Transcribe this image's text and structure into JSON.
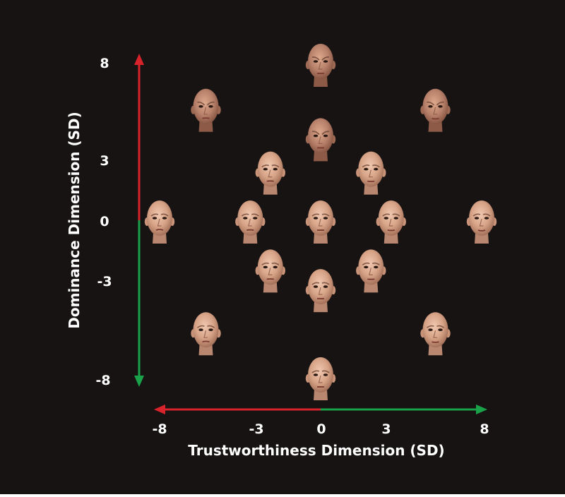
{
  "colors": {
    "background": "#171313",
    "negative_arrow": "#d9232c",
    "positive_arrow": "#1aa24a",
    "text": "#ffffff",
    "skin_light": "#e2b49a",
    "skin_dark": "#a8725a"
  },
  "axes": {
    "x": {
      "label": "Trustworthiness Dimension (SD)",
      "ticks": [
        {
          "value": -8,
          "label": "-8"
        },
        {
          "value": -3,
          "label": "-3"
        },
        {
          "value": 0,
          "label": "0"
        },
        {
          "value": 3,
          "label": "3"
        },
        {
          "value": 8,
          "label": "8"
        }
      ],
      "range": [
        -8,
        8
      ]
    },
    "y": {
      "label": "Dominance Dimension (SD)",
      "ticks": [
        {
          "value": 8,
          "label": "8"
        },
        {
          "value": 3,
          "label": "3"
        },
        {
          "value": 0,
          "label": "0"
        },
        {
          "value": -3,
          "label": "-3"
        },
        {
          "value": -8,
          "label": "-8"
        }
      ],
      "range": [
        -8,
        8
      ]
    }
  },
  "faces": [
    {
      "trust": 0,
      "dominance": 8
    },
    {
      "trust": -5.7,
      "dominance": 5.7
    },
    {
      "trust": 5.7,
      "dominance": 5.7
    },
    {
      "trust": 0,
      "dominance": 4.2
    },
    {
      "trust": -2.5,
      "dominance": 2.5
    },
    {
      "trust": 2.5,
      "dominance": 2.5
    },
    {
      "trust": -8,
      "dominance": 0
    },
    {
      "trust": -3.5,
      "dominance": 0
    },
    {
      "trust": 0,
      "dominance": 0
    },
    {
      "trust": 3.5,
      "dominance": 0
    },
    {
      "trust": 8,
      "dominance": 0
    },
    {
      "trust": -2.5,
      "dominance": -2.5
    },
    {
      "trust": 2.5,
      "dominance": -2.5
    },
    {
      "trust": 0,
      "dominance": -3.5
    },
    {
      "trust": -5.7,
      "dominance": -5.7
    },
    {
      "trust": 5.7,
      "dominance": -5.7
    },
    {
      "trust": 0,
      "dominance": -8
    }
  ]
}
